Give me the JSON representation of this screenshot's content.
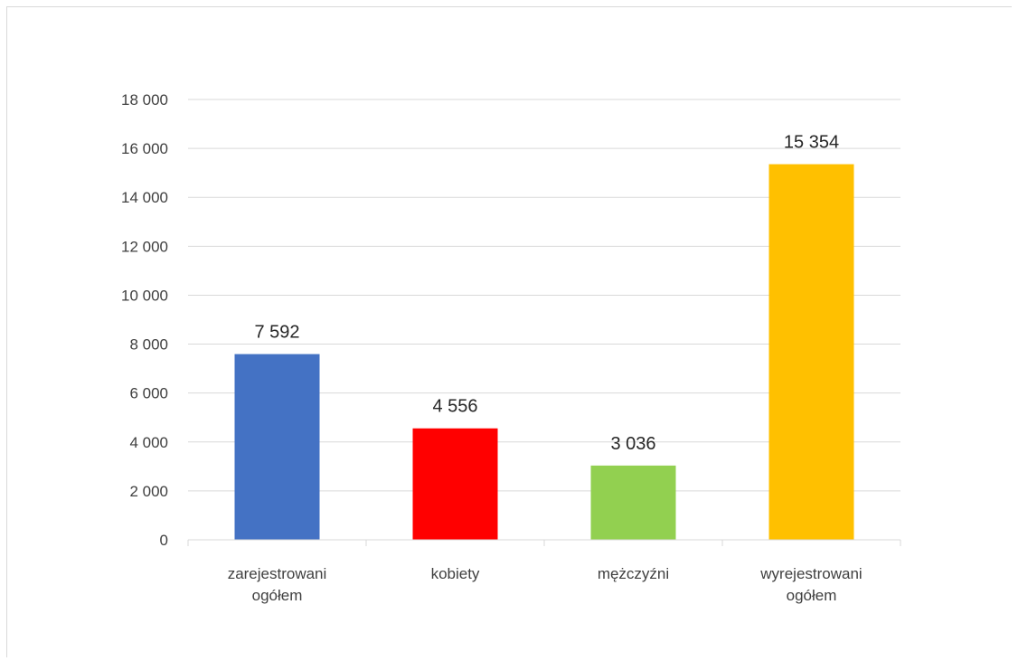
{
  "chart_data": {
    "type": "bar",
    "categories": [
      [
        "zarejestrowani",
        "ogółem"
      ],
      [
        "kobiety"
      ],
      [
        "mężczyźni"
      ],
      [
        "wyrejestrowani",
        "ogółem"
      ]
    ],
    "values": [
      7592,
      4556,
      3036,
      15354
    ],
    "data_labels": [
      "7 592",
      "4 556",
      "3 036",
      "15 354"
    ],
    "bar_colors": [
      "#4472c4",
      "#ff0000",
      "#92d050",
      "#ffc000"
    ],
    "y_ticks": [
      0,
      2000,
      4000,
      6000,
      8000,
      10000,
      12000,
      14000,
      16000,
      18000
    ],
    "y_tick_labels": [
      "0",
      "2 000",
      "4 000",
      "6 000",
      "8 000",
      "10 000",
      "12 000",
      "14 000",
      "16 000",
      "18 000"
    ],
    "ylim": [
      0,
      18000
    ],
    "title": "",
    "xlabel": "",
    "ylabel": "",
    "grid": true,
    "legend": "none"
  }
}
